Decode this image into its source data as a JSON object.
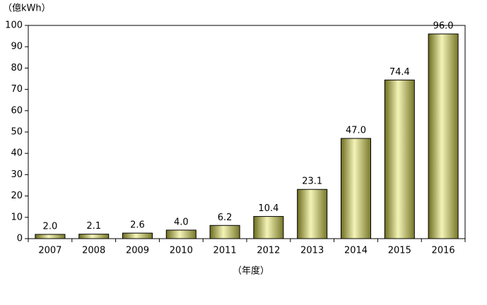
{
  "chart_data": {
    "type": "bar",
    "y_label": "（億kWh）",
    "x_label": "（年度）",
    "categories": [
      "2007",
      "2008",
      "2009",
      "2010",
      "2011",
      "2012",
      "2013",
      "2014",
      "2015",
      "2016"
    ],
    "values": [
      2.0,
      2.1,
      2.6,
      4.0,
      6.2,
      10.4,
      23.1,
      47.0,
      74.4,
      96.0
    ],
    "value_labels": [
      "2.0",
      "2.1",
      "2.6",
      "4.0",
      "6.2",
      "10.4",
      "23.1",
      "47.0",
      "74.4",
      "96.0"
    ],
    "color": "#e6e68a",
    "ylim": [
      0,
      100
    ],
    "yticks": [
      0,
      10,
      20,
      30,
      40,
      50,
      60,
      70,
      80,
      90,
      100
    ],
    "grid": false
  }
}
